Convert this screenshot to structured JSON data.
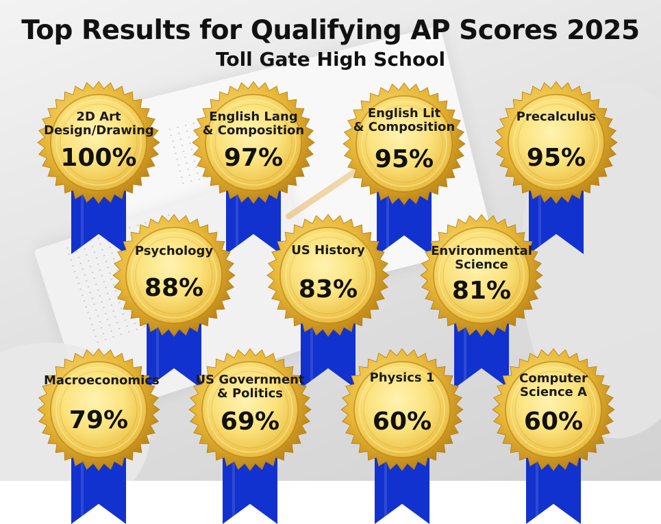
{
  "header": {
    "title": "Top Results for Qualifying AP Scores 2025",
    "subtitle": "Toll Gate High School"
  },
  "colors": {
    "gold_light": "#fbe27c",
    "gold_mid": "#e7b636",
    "gold_dark": "#b67e13",
    "ribbon": "#1232cf"
  },
  "awards": [
    {
      "label": "2D Art\nDesign/Drawing",
      "percent": "100%"
    },
    {
      "label": "English Lang\n& Composition",
      "percent": "97%"
    },
    {
      "label": "English Lit\n& Composition",
      "percent": "95%"
    },
    {
      "label": "Precalculus",
      "percent": "95%"
    },
    {
      "label": "Psychology",
      "percent": "88%"
    },
    {
      "label": "US History",
      "percent": "83%"
    },
    {
      "label": "Environmental\nScience",
      "percent": "81%"
    },
    {
      "label": "Macroeconomics",
      "percent": "79%"
    },
    {
      "label": "US Government\n& Politics",
      "percent": "69%"
    },
    {
      "label": "Physics 1",
      "percent": "60%"
    },
    {
      "label": "Computer\nScience A",
      "percent": "60%"
    }
  ]
}
